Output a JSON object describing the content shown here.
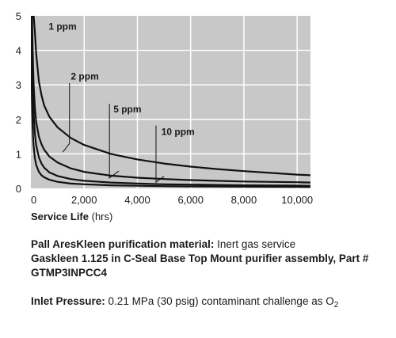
{
  "chart_data": {
    "type": "line",
    "title": "",
    "xlabel": "Service Life",
    "xlabel_unit": "(hrs)",
    "ylabel": "",
    "xlim": [
      0,
      10500
    ],
    "ylim": [
      0,
      5
    ],
    "x_ticks": [
      0,
      2000,
      4000,
      6000,
      8000,
      10000
    ],
    "x_tick_labels": [
      "0",
      "2,000",
      "4,000",
      "6,000",
      "8,000",
      "10,000"
    ],
    "y_ticks": [
      0,
      1,
      2,
      3,
      4,
      5
    ],
    "y_tick_labels": [
      "0",
      "1",
      "2",
      "3",
      "4",
      "5"
    ],
    "grid": true,
    "background": "#c8c8c8",
    "grid_color": "#ffffff",
    "line_color": "#111111",
    "series": [
      {
        "name": "1 ppm",
        "x": [
          103,
          150,
          200,
          300,
          400,
          500,
          700,
          1000,
          1500,
          2000,
          3000,
          4000,
          5000,
          6000,
          7000,
          8000,
          9000,
          10000,
          10500
        ],
        "y": [
          5,
          4.55,
          3.9,
          3.1,
          2.7,
          2.4,
          2.07,
          1.77,
          1.46,
          1.26,
          1.0,
          0.84,
          0.72,
          0.63,
          0.56,
          0.5,
          0.45,
          0.4,
          0.38
        ],
        "label_at": [
          665,
          4.6
        ]
      },
      {
        "name": "2 ppm",
        "x": [
          42,
          60,
          80,
          100,
          150,
          200,
          300,
          400,
          500,
          700,
          1000,
          1500,
          2000,
          3000,
          4000,
          5000,
          6000,
          8000,
          10000,
          10500
        ],
        "y": [
          5,
          4.3,
          3.6,
          3.05,
          2.35,
          1.92,
          1.5,
          1.28,
          1.12,
          0.92,
          0.75,
          0.58,
          0.48,
          0.37,
          0.31,
          0.27,
          0.24,
          0.2,
          0.18,
          0.17
        ],
        "label_at": [
          1500,
          3.15
        ],
        "pointer": [
          [
            1450,
            3.05
          ],
          [
            1450,
            1.3
          ],
          [
            1200,
            1.05
          ]
        ]
      },
      {
        "name": "5 ppm",
        "x": [
          22,
          40,
          60,
          80,
          100,
          150,
          200,
          300,
          400,
          500,
          700,
          1000,
          1500,
          2000,
          3000,
          4000,
          5000,
          6000,
          8000,
          10000,
          10500
        ],
        "y": [
          5,
          3.9,
          3.1,
          2.6,
          2.2,
          1.6,
          1.25,
          0.9,
          0.72,
          0.6,
          0.46,
          0.36,
          0.27,
          0.22,
          0.17,
          0.14,
          0.12,
          0.11,
          0.09,
          0.08,
          0.075
        ],
        "label_at": [
          3100,
          2.2
        ],
        "pointer": [
          [
            2950,
            2.45
          ],
          [
            2950,
            0.3
          ],
          [
            3300,
            0.5
          ]
        ]
      },
      {
        "name": "10 ppm",
        "x": [
          10,
          20,
          30,
          40,
          60,
          80,
          100,
          150,
          200,
          300,
          400,
          500,
          700,
          1000,
          1500,
          2000,
          3000,
          4000,
          5000,
          6000,
          8000,
          10000,
          10500
        ],
        "y": [
          5,
          4.0,
          3.1,
          2.6,
          1.9,
          1.5,
          1.25,
          0.88,
          0.68,
          0.48,
          0.38,
          0.32,
          0.25,
          0.19,
          0.14,
          0.12,
          0.09,
          0.075,
          0.065,
          0.058,
          0.05,
          0.045,
          0.043
        ],
        "label_at": [
          4900,
          1.55
        ],
        "pointer": [
          [
            4700,
            1.82
          ],
          [
            4700,
            0.18
          ],
          [
            5000,
            0.35
          ]
        ]
      }
    ]
  },
  "xlabel_text": {
    "main": "Service Life",
    "unit": "(hrs)"
  },
  "caption": {
    "line1_bold": "Pall AresKleen purification material:",
    "line1_rest": " Inert gas service",
    "line2_bold": "Gaskleen 1.125 in C-Seal Base Top Mount purifier assembly, Part # GTMP3INPCC4",
    "line3_bold": "Inlet Pressure:",
    "line3_rest": " 0.21 MPa (30 psig) contaminant challenge as O",
    "line3_sub": "2"
  }
}
